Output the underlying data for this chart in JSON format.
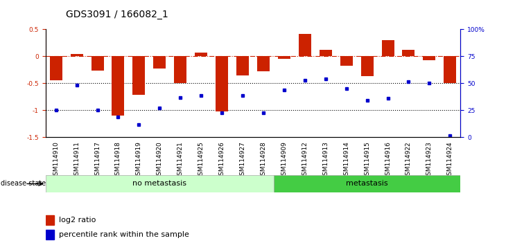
{
  "title": "GDS3091 / 166082_1",
  "samples": [
    "GSM114910",
    "GSM114911",
    "GSM114917",
    "GSM114918",
    "GSM114919",
    "GSM114920",
    "GSM114921",
    "GSM114925",
    "GSM114926",
    "GSM114927",
    "GSM114928",
    "GSM114909",
    "GSM114912",
    "GSM114913",
    "GSM114914",
    "GSM114915",
    "GSM114916",
    "GSM114922",
    "GSM114923",
    "GSM114924"
  ],
  "log2_ratio": [
    -0.44,
    0.05,
    -0.27,
    -1.1,
    -0.72,
    -0.22,
    -0.5,
    0.07,
    -1.02,
    -0.35,
    -0.28,
    -0.05,
    0.42,
    0.12,
    -0.18,
    -0.37,
    0.3,
    0.12,
    -0.07,
    -0.5
  ],
  "percentile_rank_left": [
    -1.0,
    -0.54,
    -1.0,
    -1.12,
    -1.27,
    -0.96,
    -0.76,
    -0.73,
    -1.05,
    -0.73,
    -1.05,
    -0.62,
    -0.45,
    -0.42,
    -0.6,
    -0.82,
    -0.78,
    -0.47,
    -0.5,
    -1.47
  ],
  "no_metastasis_count": 11,
  "bar_color": "#cc2200",
  "dot_color": "#0000cc",
  "ylim_left": [
    -1.5,
    0.5
  ],
  "left_yticks": [
    -1.5,
    -1.0,
    -0.5,
    0.0,
    0.5
  ],
  "left_yticklabels": [
    "-1.5",
    "-1",
    "-0.5",
    "0",
    "0.5"
  ],
  "right_yticks": [
    0,
    25,
    50,
    75,
    100
  ],
  "right_yticklabels": [
    "0",
    "25",
    "50",
    "75",
    "100%"
  ],
  "dotted_lines": [
    -0.5,
    -1.0
  ],
  "legend_bar_label": "log2 ratio",
  "legend_dot_label": "percentile rank within the sample",
  "disease_state_label": "disease state",
  "no_metastasis_label": "no metastasis",
  "metastasis_label": "metastasis",
  "no_metastasis_color": "#ccffcc",
  "metastasis_color": "#44cc44",
  "title_fontsize": 10,
  "tick_fontsize": 6.5,
  "label_fontsize": 8
}
